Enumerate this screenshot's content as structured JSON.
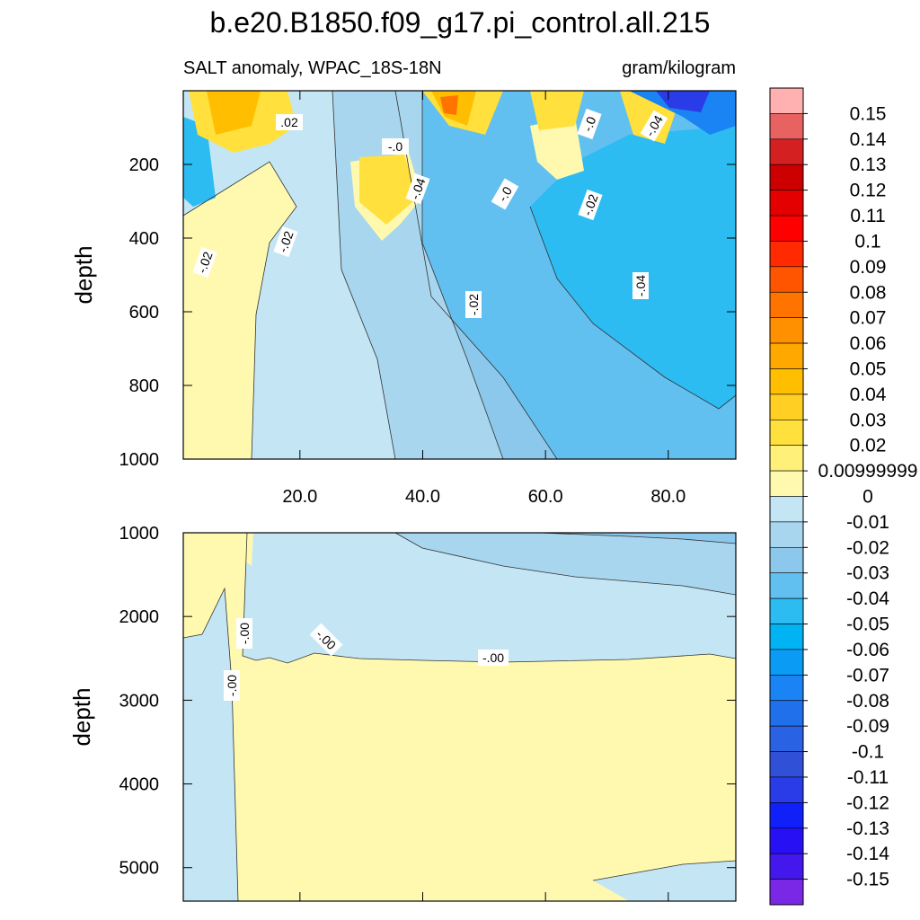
{
  "chart_data": {
    "type": "heatmap",
    "title": "b.e20.B1850.f09_g17.pi_control.all.215",
    "subtitle_left": "SALT anomaly, WPAC_18S-18N",
    "subtitle_right": "gram/kilogram",
    "ylabel": "depth",
    "upper_panel": {
      "xlim": [
        1,
        91
      ],
      "ylim": [
        1000,
        0
      ],
      "x_ticks": [
        20,
        40,
        60,
        80
      ],
      "x_tick_labels": [
        "20.0",
        "40.0",
        "60.0",
        "80.0"
      ],
      "y_ticks": [
        200,
        400,
        600,
        800,
        1000
      ],
      "y_tick_labels": [
        "200",
        "400",
        "600",
        "800",
        "1000"
      ],
      "contour_labels": [
        ".02",
        "-.0",
        "-.02",
        "-.02",
        "-.04",
        "-.0",
        "-.0",
        "-.02",
        "-.04",
        "-.04",
        "-.02"
      ]
    },
    "lower_panel": {
      "xlim": [
        1,
        91
      ],
      "ylim": [
        5400,
        1000
      ],
      "y_ticks": [
        1000,
        2000,
        3000,
        4000,
        5000
      ],
      "y_tick_labels": [
        "1000",
        "2000",
        "3000",
        "4000",
        "5000"
      ],
      "contour_labels": [
        "-.00",
        "-.00",
        "-.00",
        "-.00"
      ]
    },
    "colorbar": {
      "labels": [
        "0.15",
        "0.14",
        "0.13",
        "0.12",
        "0.11",
        "0.1",
        "0.09",
        "0.08",
        "0.07",
        "0.06",
        "0.05",
        "0.04",
        "0.03",
        "0.02",
        "0.00999999",
        "0",
        "-0.01",
        "-0.02",
        "-0.03",
        "-0.04",
        "-0.05",
        "-0.06",
        "-0.07",
        "-0.08",
        "-0.09",
        "-0.1",
        "-0.11",
        "-0.12",
        "-0.13",
        "-0.14",
        "-0.15"
      ],
      "colors": [
        "#FFB0B0",
        "#E86262",
        "#D42020",
        "#CC0000",
        "#E40000",
        "#FF0000",
        "#FF2A00",
        "#FF5400",
        "#FF7400",
        "#FF9000",
        "#FFA800",
        "#FFBE00",
        "#FFCF24",
        "#FFE03C",
        "#FFF07A",
        "#FFF9B0",
        "#C4E6F4",
        "#A8D6EE",
        "#8CC8EC",
        "#62C0F0",
        "#2CBCF2",
        "#00B4F4",
        "#0A9CF4",
        "#1A84F4",
        "#2070EC",
        "#2A62E4",
        "#3050D8",
        "#2A3CE8",
        "#1020F8",
        "#2810F4",
        "#4418EC",
        "#7A28E6"
      ]
    }
  }
}
